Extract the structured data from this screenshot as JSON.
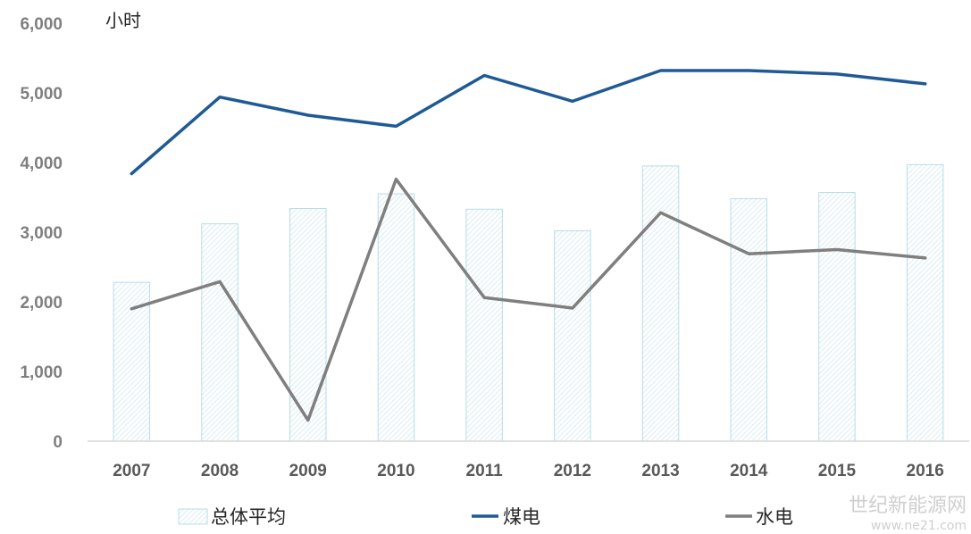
{
  "chart_data": {
    "type": "bar",
    "unit_label": "小时",
    "categories": [
      "2007",
      "2008",
      "2009",
      "2010",
      "2011",
      "2012",
      "2013",
      "2014",
      "2015",
      "2016"
    ],
    "ylim": [
      0,
      6000
    ],
    "yticks": [
      "0",
      "1,000",
      "2,000",
      "3,000",
      "4,000",
      "5,000",
      "6,000"
    ],
    "grid": false,
    "legend_position": "bottom",
    "series": [
      {
        "name": "总体平均",
        "type": "bar",
        "color": "#b7dde8",
        "values": [
          2280,
          3120,
          3340,
          3550,
          3330,
          3020,
          3950,
          3480,
          3570,
          3970
        ]
      },
      {
        "name": "煤电",
        "type": "line",
        "color": "#1f5a96",
        "values": [
          3840,
          4940,
          4680,
          4520,
          5250,
          4880,
          5320,
          5320,
          5270,
          5130
        ]
      },
      {
        "name": "水电",
        "type": "line",
        "color": "#7f7f7f",
        "values": [
          1900,
          2290,
          300,
          3760,
          2060,
          1910,
          3280,
          2690,
          2750,
          2630
        ]
      }
    ]
  },
  "watermark": {
    "title": "世纪新能源网",
    "url": "www.ne21.com"
  }
}
